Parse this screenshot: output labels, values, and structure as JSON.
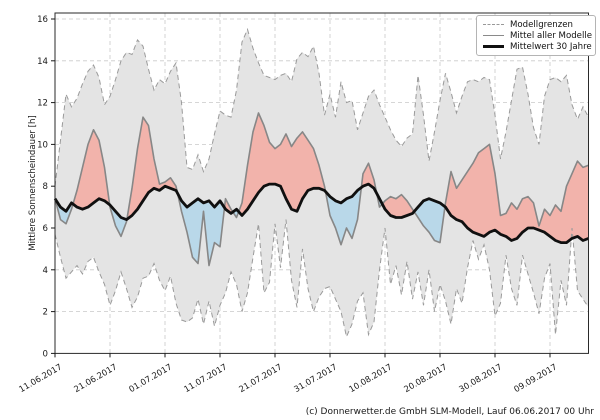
{
  "caption": "(c) Donnerwetter.de GmbH SLM-Modell, Lauf 06.06.2017 00 Uhr",
  "legend": {
    "items": [
      {
        "label": "Modellgrenzen",
        "style": "dashed-gray-line"
      },
      {
        "label": "Mittel aller Modelle",
        "style": "solid-gray-line"
      },
      {
        "label": "Mittelwert 30 Jahre",
        "style": "thick-black-line"
      }
    ]
  },
  "chart_data": {
    "type": "line",
    "title": "",
    "xlabel": "",
    "ylabel": "Mittlere Sonnenscheindauer [h]",
    "ylim": [
      0,
      16
    ],
    "grid": true,
    "grid_style": "dashed",
    "legend_position": "upper right",
    "x_unit": "days, daily values starting 11.06.2017",
    "n_points": 98,
    "y_ticks": [
      0,
      2,
      4,
      6,
      8,
      10,
      12,
      14,
      16
    ],
    "x_tick_days": [
      0,
      10,
      20,
      30,
      40,
      50,
      60,
      70,
      80,
      90
    ],
    "x_tick_labels": [
      "11.06.2017",
      "21.06.2017",
      "01.07.2017",
      "11.07.2017",
      "21.07.2017",
      "31.07.2017",
      "10.08.2017",
      "20.08.2017",
      "30.08.2017",
      "09.09.2017"
    ],
    "colors": {
      "band_fill": "#e4e4e4",
      "bounds_line": "#9a9a9a",
      "mean_models_line": "#878787",
      "mean30_line": "#101010",
      "above_mean_fill": "#f2b3ab",
      "below_mean_fill": "#b9d8e9",
      "grid_line": "#c9c9c9",
      "frame": "#2a2a2a"
    },
    "series": [
      {
        "name": "Modellgrenzen (obere Grenze)",
        "style": "dashed",
        "values": [
          8.0,
          10.2,
          12.4,
          11.8,
          12.2,
          12.9,
          13.5,
          13.8,
          13.2,
          11.9,
          12.3,
          13.1,
          14.0,
          14.4,
          14.3,
          15.0,
          14.7,
          13.6,
          12.6,
          13.1,
          12.9,
          13.5,
          13.9,
          12.0,
          8.9,
          8.8,
          9.5,
          8.7,
          9.3,
          10.5,
          11.6,
          11.4,
          11.3,
          12.6,
          14.9,
          15.5,
          14.6,
          13.9,
          13.3,
          13.2,
          13.1,
          13.3,
          13.4,
          13.0,
          14.1,
          14.4,
          14.2,
          14.7,
          13.4,
          11.4,
          12.4,
          11.3,
          13.0,
          12.0,
          12.1,
          10.7,
          11.5,
          12.3,
          12.6,
          11.9,
          11.3,
          10.7,
          10.2,
          9.9,
          10.3,
          10.5,
          13.3,
          11.4,
          9.2,
          10.6,
          12.1,
          13.4,
          12.5,
          11.5,
          12.3,
          13.0,
          13.1,
          13.0,
          13.2,
          13.1,
          11.4,
          9.3,
          10.6,
          12.1,
          13.6,
          13.7,
          12.4,
          10.8,
          10.0,
          12.3,
          13.1,
          13.2,
          13.0,
          13.3,
          11.9,
          11.2,
          11.8,
          11.3
        ]
      },
      {
        "name": "Modellgrenzen (untere Grenze)",
        "style": "dashed",
        "values": [
          5.7,
          4.6,
          3.6,
          3.9,
          4.2,
          3.8,
          4.4,
          4.6,
          3.9,
          3.3,
          2.3,
          3.0,
          3.9,
          3.1,
          2.2,
          2.7,
          3.6,
          3.7,
          4.3,
          3.5,
          3.0,
          3.7,
          2.4,
          1.6,
          1.5,
          1.7,
          2.6,
          1.4,
          2.5,
          1.3,
          2.3,
          2.9,
          3.9,
          3.3,
          2.0,
          2.9,
          4.6,
          6.2,
          2.9,
          3.4,
          6.2,
          4.1,
          6.4,
          3.5,
          2.2,
          5.0,
          3.1,
          2.0,
          2.7,
          3.1,
          3.2,
          2.6,
          2.0,
          0.8,
          1.4,
          2.5,
          2.9,
          0.9,
          1.5,
          4.0,
          6.0,
          3.3,
          4.2,
          2.8,
          4.4,
          2.6,
          3.9,
          2.3,
          4.0,
          2.0,
          3.3,
          2.5,
          1.4,
          3.1,
          2.4,
          4.1,
          5.4,
          4.5,
          5.2,
          4.0,
          1.8,
          2.4,
          4.7,
          3.1,
          2.3,
          4.7,
          3.8,
          2.9,
          1.9,
          3.6,
          4.3,
          0.9,
          3.5,
          2.3,
          6.0,
          3.0,
          2.6,
          2.2
        ]
      },
      {
        "name": "Mittel aller Modelle",
        "style": "solid",
        "values": [
          7.4,
          6.4,
          6.2,
          6.9,
          7.8,
          8.9,
          10.0,
          10.7,
          10.2,
          8.9,
          7.0,
          6.1,
          5.6,
          6.3,
          7.9,
          9.8,
          11.3,
          10.9,
          9.3,
          8.1,
          8.2,
          8.4,
          8.0,
          6.8,
          5.8,
          4.6,
          4.3,
          6.8,
          4.2,
          5.3,
          5.1,
          7.4,
          6.9,
          6.5,
          7.2,
          9.0,
          10.6,
          11.5,
          10.9,
          10.1,
          9.8,
          10.0,
          10.5,
          9.9,
          10.3,
          10.6,
          10.2,
          9.8,
          9.0,
          8.0,
          6.6,
          6.0,
          5.2,
          6.0,
          5.5,
          6.4,
          8.6,
          9.1,
          8.3,
          7.0,
          7.3,
          7.5,
          7.4,
          7.6,
          7.3,
          6.9,
          6.5,
          6.1,
          5.8,
          5.4,
          5.3,
          7.2,
          8.7,
          7.9,
          8.3,
          8.7,
          9.1,
          9.6,
          9.8,
          10.0,
          8.6,
          6.6,
          6.7,
          7.2,
          6.9,
          7.4,
          7.5,
          7.2,
          6.1,
          6.9,
          6.6,
          7.1,
          6.8,
          8.0,
          8.6,
          9.2,
          8.9,
          9.0
        ]
      },
      {
        "name": "Mittelwert 30 Jahre",
        "style": "thick",
        "values": [
          7.4,
          7.0,
          6.8,
          7.2,
          7.0,
          6.9,
          7.0,
          7.2,
          7.4,
          7.3,
          7.1,
          6.8,
          6.5,
          6.4,
          6.6,
          6.9,
          7.3,
          7.7,
          7.9,
          7.8,
          8.0,
          7.9,
          7.8,
          7.3,
          7.0,
          7.2,
          7.4,
          7.2,
          7.3,
          7.0,
          7.3,
          6.9,
          6.7,
          6.9,
          6.6,
          6.9,
          7.3,
          7.7,
          8.0,
          8.1,
          8.1,
          8.0,
          7.4,
          6.9,
          6.8,
          7.4,
          7.8,
          7.9,
          7.9,
          7.8,
          7.5,
          7.3,
          7.2,
          7.4,
          7.5,
          7.8,
          8.0,
          8.1,
          7.9,
          7.4,
          6.9,
          6.6,
          6.5,
          6.5,
          6.6,
          6.7,
          7.0,
          7.3,
          7.4,
          7.3,
          7.2,
          7.0,
          6.6,
          6.4,
          6.3,
          6.0,
          5.8,
          5.7,
          5.6,
          5.8,
          5.9,
          5.7,
          5.6,
          5.4,
          5.5,
          5.8,
          6.0,
          6.0,
          5.9,
          5.8,
          5.6,
          5.4,
          5.3,
          5.3,
          5.5,
          5.6,
          5.4,
          5.5
        ]
      }
    ]
  }
}
